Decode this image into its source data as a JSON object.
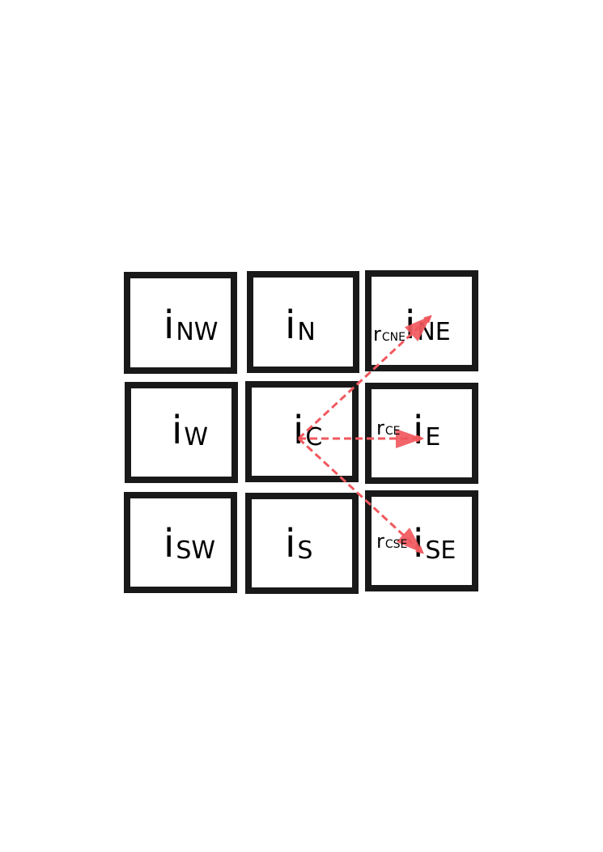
{
  "accent_color": "#f0585e",
  "cells": [
    {
      "id": "nw",
      "main": "i",
      "sub": "NW"
    },
    {
      "id": "n",
      "main": "i",
      "sub": "N"
    },
    {
      "id": "ne",
      "main": "i",
      "sub": "NE"
    },
    {
      "id": "w",
      "main": "i",
      "sub": "W"
    },
    {
      "id": "c",
      "main": "i",
      "sub": "C"
    },
    {
      "id": "e",
      "main": "i",
      "sub": "E"
    },
    {
      "id": "sw",
      "main": "i",
      "sub": "SW"
    },
    {
      "id": "s",
      "main": "i",
      "sub": "S"
    },
    {
      "id": "se",
      "main": "i",
      "sub": "SE"
    }
  ],
  "vectors": [
    {
      "id": "cne",
      "from": "c",
      "to": "ne",
      "main": "r",
      "sub": "CNE"
    },
    {
      "id": "ce",
      "from": "c",
      "to": "e",
      "main": "r",
      "sub": "CE"
    },
    {
      "id": "cse",
      "from": "c",
      "to": "se",
      "main": "r",
      "sub": "CSE"
    }
  ]
}
